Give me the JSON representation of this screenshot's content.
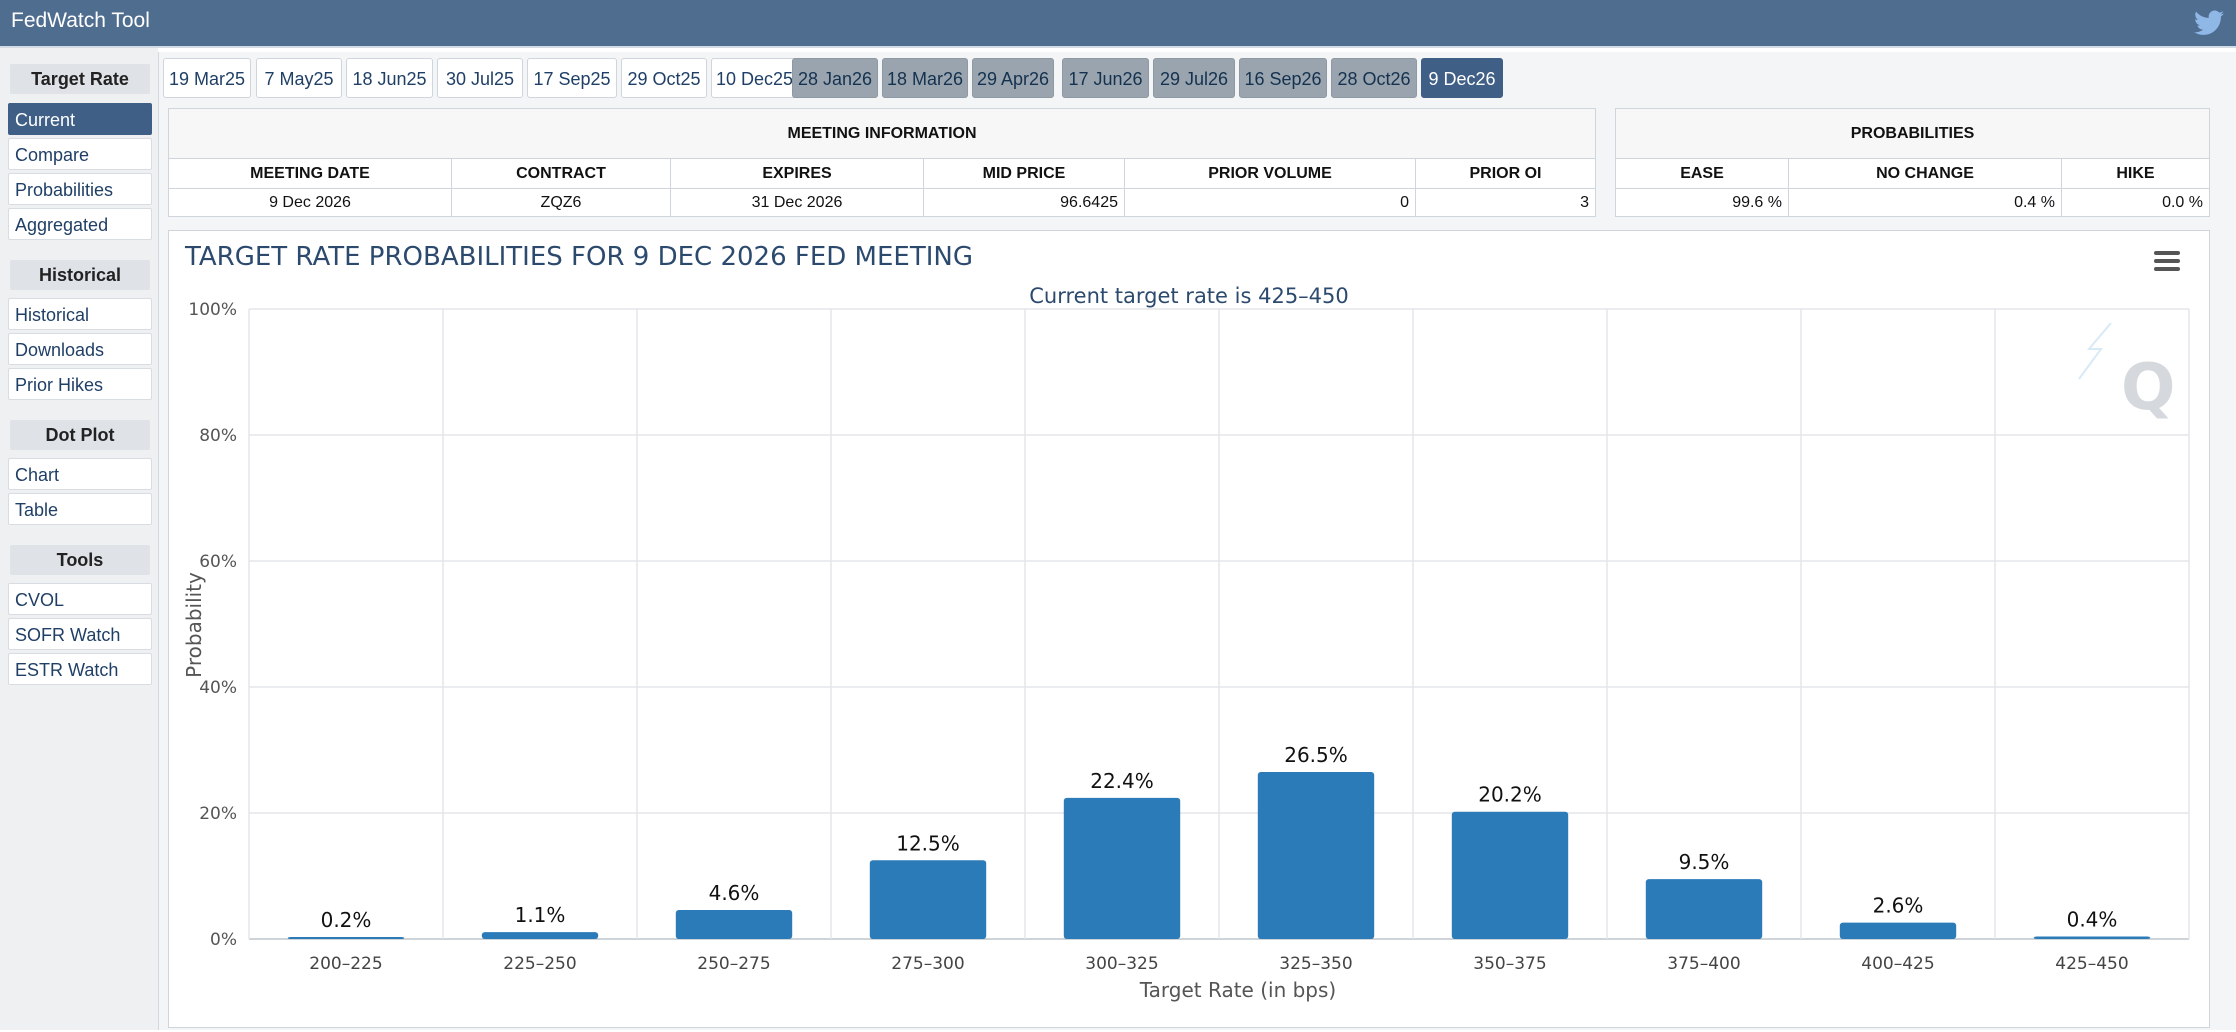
{
  "app": {
    "title": "FedWatch Tool"
  },
  "sidebar": {
    "sections": [
      {
        "heading": "Target Rate",
        "items": [
          "Current",
          "Compare",
          "Probabilities",
          "Aggregated"
        ]
      },
      {
        "heading": "Historical",
        "items": [
          "Historical",
          "Downloads",
          "Prior Hikes"
        ]
      },
      {
        "heading": "Dot Plot",
        "items": [
          "Chart",
          "Table"
        ]
      },
      {
        "heading": "Tools",
        "items": [
          "CVOL",
          "SOFR Watch",
          "ESTR Watch"
        ]
      }
    ],
    "active_item": "Current"
  },
  "tabs": [
    "19 Mar25",
    "7 May25",
    "18 Jun25",
    "30 Jul25",
    "17 Sep25",
    "29 Oct25",
    "10 Dec25",
    "28 Jan26",
    "18 Mar26",
    "29 Apr26",
    "17 Jun26",
    "29 Jul26",
    "16 Sep26",
    "28 Oct26",
    "9 Dec26"
  ],
  "active_tab": "9 Dec26",
  "meeting_info": {
    "heading": "MEETING INFORMATION",
    "columns": [
      "MEETING DATE",
      "CONTRACT",
      "EXPIRES",
      "MID PRICE",
      "PRIOR VOLUME",
      "PRIOR OI"
    ],
    "values": [
      "9 Dec 2026",
      "ZQZ6",
      "31 Dec 2026",
      "96.6425",
      "0",
      "3"
    ]
  },
  "probabilities": {
    "heading": "PROBABILITIES",
    "columns": [
      "EASE",
      "NO CHANGE",
      "HIKE"
    ],
    "values": [
      "99.6 %",
      "0.4 %",
      "0.0 %"
    ]
  },
  "colors": {
    "header": "#4f6d8f",
    "active": "#3f5f86",
    "bar": "#2b7bb9",
    "future_tab": "#9aa4ae"
  },
  "chart_data": {
    "type": "bar",
    "title": "TARGET RATE PROBABILITIES FOR 9 DEC 2026 FED MEETING",
    "subtitle": "Current target rate is 425–450",
    "xlabel": "Target Rate (in bps)",
    "ylabel": "Probability",
    "categories": [
      "200–225",
      "225–250",
      "250–275",
      "275–300",
      "300–325",
      "325–350",
      "350–375",
      "375–400",
      "400–425",
      "425–450"
    ],
    "values": [
      0.2,
      1.1,
      4.6,
      12.5,
      22.4,
      26.5,
      20.2,
      9.5,
      2.6,
      0.4
    ],
    "labels": [
      "0.2%",
      "1.1%",
      "4.6%",
      "12.5%",
      "22.4%",
      "26.5%",
      "20.2%",
      "9.5%",
      "2.6%",
      "0.4%"
    ],
    "yticks": [
      "0%",
      "20%",
      "40%",
      "60%",
      "80%",
      "100%"
    ],
    "ylim": [
      0,
      100
    ],
    "grid": true
  }
}
